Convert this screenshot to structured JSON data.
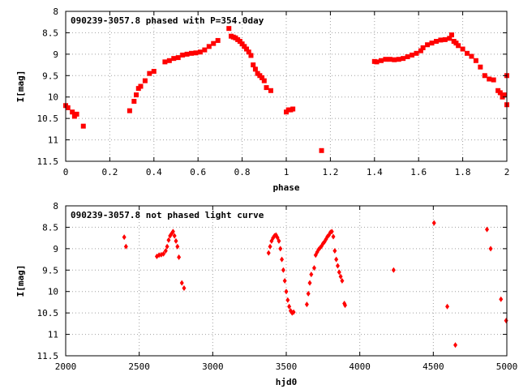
{
  "chart_data": [
    {
      "type": "scatter",
      "title": "090239-3057.8 phased with P=354.0day",
      "xlabel": "phase",
      "ylabel": "I[mag]",
      "xlim": [
        0,
        2
      ],
      "ylim": [
        8,
        11.5
      ],
      "y_inverted": true,
      "grid": true,
      "color": "#ff0000",
      "marker": "filled-square",
      "x_ticks": [
        0,
        0.2,
        0.4,
        0.6,
        0.8,
        1,
        1.2,
        1.4,
        1.6,
        1.8,
        2
      ],
      "x_tick_labels": [
        "0",
        "0.2",
        "0.4",
        "0.6",
        "0.8",
        "1",
        "1.2",
        "1.4",
        "1.6",
        "1.8",
        "2"
      ],
      "y_ticks": [
        8,
        8.5,
        9,
        9.5,
        10,
        10.5,
        11,
        11.5
      ],
      "y_tick_labels": [
        "8",
        "8.5",
        "9",
        "9.5",
        "10",
        "10.5",
        "11",
        "11.5"
      ],
      "series": [
        {
          "x": [
            0.0,
            0.01,
            0.03,
            0.04,
            0.05,
            0.08,
            0.29,
            0.31,
            0.32,
            0.33,
            0.34,
            0.36,
            0.38,
            0.4,
            0.45,
            0.47,
            0.49,
            0.51,
            0.53,
            0.55,
            0.57,
            0.59,
            0.61,
            0.63,
            0.65,
            0.67,
            0.69,
            0.74,
            0.75,
            0.76,
            0.77,
            0.78,
            0.79,
            0.8,
            0.81,
            0.82,
            0.83,
            0.84,
            0.85,
            0.86,
            0.87,
            0.88,
            0.89,
            0.9,
            0.91,
            0.93,
            1.0,
            1.01,
            1.02,
            1.03,
            1.16,
            1.4,
            1.41,
            1.43,
            1.45,
            1.47,
            1.49,
            1.51,
            1.53,
            1.55,
            1.57,
            1.59,
            1.61,
            1.62,
            1.64,
            1.66,
            1.68,
            1.7,
            1.72,
            1.74,
            1.75,
            1.76,
            1.77,
            1.78,
            1.8,
            1.82,
            1.84,
            1.86,
            1.88,
            1.9,
            1.92,
            1.94,
            1.96,
            1.97,
            1.98,
            1.99,
            2.0,
            2.0
          ],
          "y": [
            10.2,
            10.25,
            10.35,
            10.45,
            10.4,
            10.68,
            10.32,
            10.1,
            9.95,
            9.8,
            9.75,
            9.62,
            9.45,
            9.4,
            9.18,
            9.15,
            9.1,
            9.08,
            9.02,
            9.0,
            8.98,
            8.97,
            8.95,
            8.9,
            8.82,
            8.75,
            8.68,
            8.4,
            8.58,
            8.6,
            8.62,
            8.66,
            8.7,
            8.76,
            8.82,
            8.88,
            8.95,
            9.03,
            9.25,
            9.35,
            9.45,
            9.5,
            9.55,
            9.62,
            9.78,
            9.85,
            10.35,
            10.3,
            10.3,
            10.28,
            11.25,
            9.17,
            9.18,
            9.15,
            9.12,
            9.12,
            9.13,
            9.12,
            9.1,
            9.06,
            9.02,
            8.98,
            8.92,
            8.85,
            8.78,
            8.74,
            8.7,
            8.67,
            8.66,
            8.63,
            8.55,
            8.7,
            8.74,
            8.8,
            8.88,
            8.98,
            9.05,
            9.15,
            9.3,
            9.5,
            9.58,
            9.6,
            9.85,
            9.9,
            10.0,
            9.95,
            9.5,
            10.18
          ]
        }
      ]
    },
    {
      "type": "scatter",
      "title": "090239-3057.8 not phased light curve",
      "xlabel": "hjd0",
      "ylabel": "I[mag]",
      "xlim": [
        2000,
        5000
      ],
      "ylim": [
        8,
        11.5
      ],
      "y_inverted": true,
      "grid": true,
      "color": "#ff0000",
      "marker": "filled-diamond",
      "x_ticks": [
        2000,
        2500,
        3000,
        3500,
        4000,
        4500,
        5000
      ],
      "x_tick_labels": [
        "2000",
        "2500",
        "3000",
        "3500",
        "4000",
        "4500",
        "5000"
      ],
      "y_ticks": [
        8,
        8.5,
        9,
        9.5,
        10,
        10.5,
        11,
        11.5
      ],
      "y_tick_labels": [
        "8",
        "8.5",
        "9",
        "9.5",
        "10",
        "10.5",
        "11",
        "11.5"
      ],
      "series": [
        {
          "x": [
            2398,
            2410,
            2620,
            2635,
            2650,
            2665,
            2680,
            2690,
            2700,
            2710,
            2720,
            2730,
            2740,
            2750,
            2760,
            2770,
            2790,
            2805,
            3380,
            3390,
            3400,
            3410,
            3420,
            3430,
            3440,
            3450,
            3460,
            3470,
            3480,
            3490,
            3500,
            3510,
            3520,
            3530,
            3540,
            3550,
            3640,
            3650,
            3660,
            3670,
            3690,
            3700,
            3710,
            3720,
            3730,
            3740,
            3750,
            3760,
            3770,
            3780,
            3790,
            3800,
            3810,
            3820,
            3830,
            3840,
            3850,
            3860,
            3870,
            3880,
            3895,
            3900,
            4230,
            4505,
            4595,
            4650,
            4865,
            4890,
            4960,
            4995
          ],
          "y": [
            8.73,
            8.95,
            9.18,
            9.15,
            9.14,
            9.12,
            9.05,
            8.95,
            8.8,
            8.7,
            8.65,
            8.6,
            8.7,
            8.82,
            8.95,
            9.2,
            9.8,
            9.92,
            9.1,
            8.95,
            8.82,
            8.75,
            8.7,
            8.68,
            8.74,
            8.82,
            9.0,
            9.25,
            9.5,
            9.75,
            10.0,
            10.2,
            10.35,
            10.45,
            10.5,
            10.48,
            10.3,
            10.05,
            9.8,
            9.6,
            9.45,
            9.15,
            9.08,
            9.02,
            8.98,
            8.94,
            8.88,
            8.84,
            8.78,
            8.72,
            8.68,
            8.62,
            8.6,
            8.72,
            9.05,
            9.25,
            9.4,
            9.55,
            9.65,
            9.75,
            10.28,
            10.32,
            9.5,
            8.4,
            10.35,
            11.25,
            8.55,
            9.0,
            10.18,
            10.68
          ]
        }
      ]
    }
  ]
}
